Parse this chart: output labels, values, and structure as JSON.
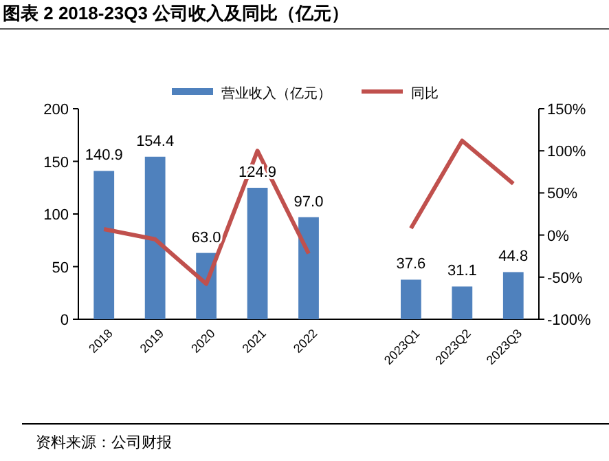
{
  "chart_data": {
    "type": "bar",
    "title": "图表 2 2018-23Q3 公司收入及同比（亿元）",
    "annotations": [
      "资料来源：公司财报"
    ],
    "categories": [
      "2018",
      "2019",
      "2020",
      "2021",
      "2022",
      null,
      "2023Q1",
      "2023Q2",
      "2023Q3"
    ],
    "series": [
      {
        "name": "营业收入（亿元）",
        "color": "#4f81bd",
        "values": [
          140.9,
          154.4,
          63.0,
          124.9,
          97.0,
          null,
          37.6,
          31.1,
          44.8
        ],
        "value_labels": [
          "140.9",
          "154.4",
          "63.0",
          "124.9",
          "97.0",
          null,
          "37.6",
          "31.1",
          "44.8"
        ]
      },
      {
        "name": "同比",
        "type": "line",
        "axis": "y2",
        "color": "#c0504d",
        "values": [
          7,
          -5,
          -58,
          100,
          -22,
          null,
          8,
          112,
          61
        ]
      }
    ],
    "ylim": [
      0,
      200
    ],
    "yticks": [
      0,
      50,
      100,
      150,
      200
    ],
    "y2lim": [
      -100,
      150
    ],
    "y2ticks": [
      {
        "value": -100,
        "label": "-100%"
      },
      {
        "value": -50,
        "label": "-50%"
      },
      {
        "value": 0,
        "label": "0%"
      },
      {
        "value": 50,
        "label": "50%"
      },
      {
        "value": 100,
        "label": "100%"
      },
      {
        "value": 150,
        "label": "150%"
      }
    ],
    "legend": "top"
  }
}
